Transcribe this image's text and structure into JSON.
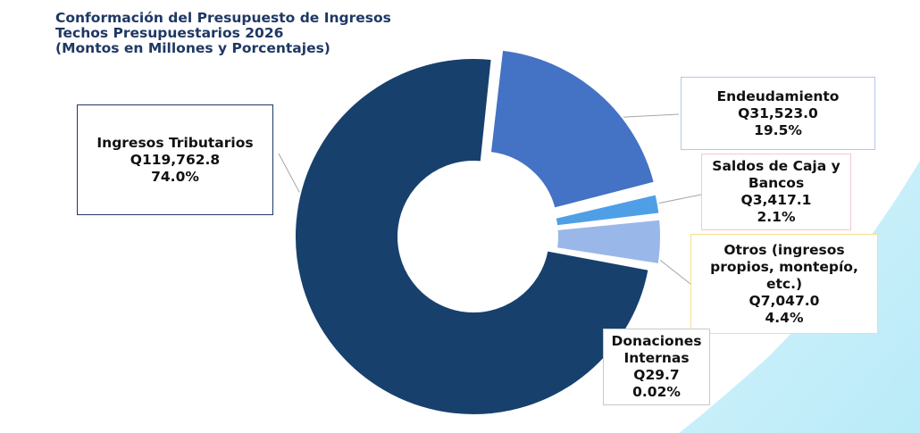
{
  "chart_data": {
    "type": "pie",
    "title": "Conformación del Presupuesto de Ingresos",
    "subtitle_lines": [
      "Techos Presupuestarios 2026",
      "(Montos en Millones y Porcentajes)"
    ],
    "slices": [
      {
        "label_lines": [
          "Ingresos Tributarios"
        ],
        "value_text": "Q119,762.8",
        "percent_text": "74.0%",
        "value": 119762.8,
        "color": "#17406d"
      },
      {
        "label_lines": [
          "Endeudamiento"
        ],
        "value_text": "Q31,523.0",
        "percent_text": "19.5%",
        "value": 31523.0,
        "color": "#4472c4"
      },
      {
        "label_lines": [
          "Saldos de Caja y",
          "Bancos"
        ],
        "value_text": "Q3,417.1",
        "percent_text": "2.1%",
        "value": 3417.1,
        "color": "#4f9fe6"
      },
      {
        "label_lines": [
          "Otros (ingresos",
          "propios, montepío,",
          "etc.)"
        ],
        "value_text": "Q7,047.0",
        "percent_text": "4.4%",
        "value": 7047.0,
        "color": "#9ab7e9"
      },
      {
        "label_lines": [
          "Donaciones",
          "Internas"
        ],
        "value_text": "Q29.7",
        "percent_text": "0.02%",
        "value": 29.7,
        "color": "#2e75b6"
      }
    ]
  }
}
